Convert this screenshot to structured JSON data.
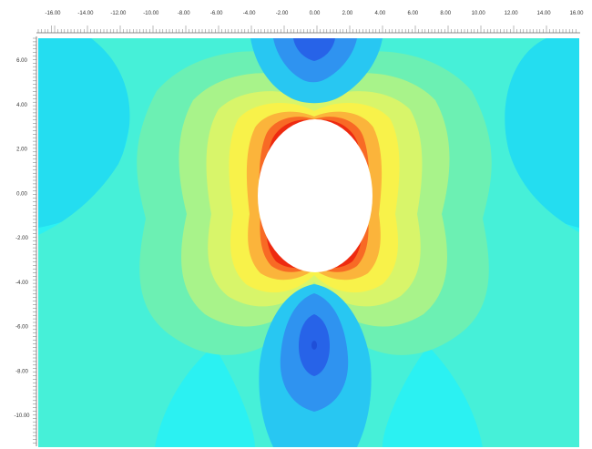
{
  "ruler": {
    "top_ticks": [
      "-16.00",
      "-14.00",
      "-12.00",
      "-10.00",
      "-8.00",
      "-6.00",
      "-4.00",
      "-2.00",
      "0.00",
      "2.00",
      "4.00",
      "6.00",
      "8.00",
      "10.00",
      "12.00",
      "14.00",
      "16.00"
    ],
    "left_ticks": [
      "6.00",
      "4.00",
      "2.00",
      "0.00",
      "-2.00",
      "-4.00",
      "-6.00",
      "-8.00",
      "-10.00"
    ]
  },
  "contour": {
    "colors": {
      "background": "#2BF1F2",
      "band_light_cyan": "#46F0D8",
      "band_teal": "#6CF0B3",
      "band_green": "#A8F38A",
      "band_yellow_green": "#D8F56A",
      "band_yellow": "#F8F24A",
      "band_orange": "#FBB43B",
      "band_red_orange": "#F86A25",
      "band_red": "#EE2A10",
      "low_sky": "#28C7F2",
      "low_blue": "#2F93F0",
      "low_deep_blue": "#2763E8",
      "opening": "#FFFFFF"
    }
  }
}
